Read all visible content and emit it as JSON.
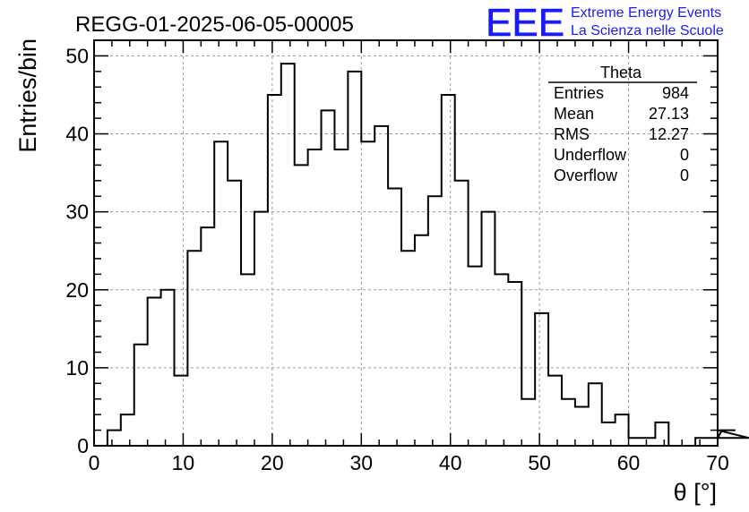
{
  "chart_data": {
    "type": "histogram",
    "title": "REGG-01-2025-06-05-00005",
    "xlabel": "θ [°]",
    "ylabel": "Entries/bin",
    "xlim": [
      0,
      70
    ],
    "ylim": [
      0,
      52
    ],
    "xticks": [
      0,
      10,
      20,
      30,
      40,
      50,
      60,
      70
    ],
    "yticks": [
      0,
      10,
      20,
      30,
      40,
      50
    ],
    "grid": true,
    "bin_width": 1.5,
    "bin_start": 0,
    "values": [
      0,
      2,
      4,
      13,
      19,
      20,
      9,
      25,
      28,
      39,
      34,
      22,
      30,
      45,
      49,
      36,
      38,
      43,
      38,
      48,
      39,
      41,
      33,
      25,
      27,
      32,
      45,
      34,
      23,
      30,
      22,
      21,
      6,
      17,
      9,
      6,
      5,
      8,
      3,
      4,
      1,
      1,
      3,
      0,
      0,
      1,
      1,
      2,
      2,
      1
    ],
    "stats_box": {
      "title": "Theta",
      "rows": [
        {
          "label": "Entries",
          "value": "984"
        },
        {
          "label": "Mean",
          "value": "27.13"
        },
        {
          "label": "RMS",
          "value": "12.27"
        },
        {
          "label": "Underflow",
          "value": "0"
        },
        {
          "label": "Overflow",
          "value": "0"
        }
      ]
    }
  },
  "logo": {
    "mark": "EEE",
    "line1": "Extreme Energy Events",
    "line2": "La Scienza nelle Scuole",
    "color": "#1a1aff"
  },
  "colors": {
    "histogram": "#000000",
    "grid": "#9a9a9a",
    "frame": "#000000"
  }
}
